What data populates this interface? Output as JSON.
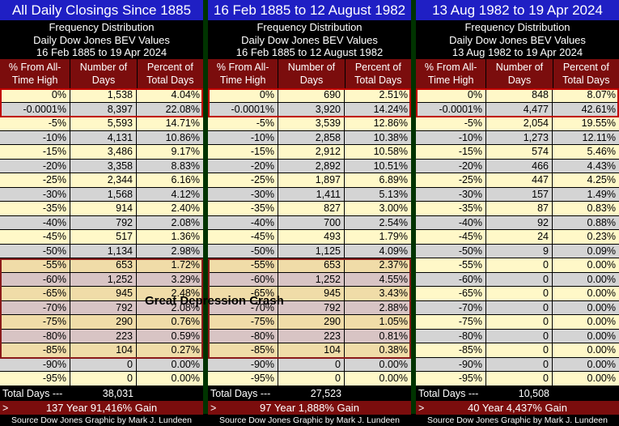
{
  "chart_data": [
    {
      "type": "table",
      "title": "All Daily Closings Since 1885",
      "subtitle": [
        "Frequency Distribution",
        "Daily Dow Jones BEV Values",
        "16 Feb 1885 to 19 Apr 2024"
      ],
      "columns": [
        "% From All-Time High",
        "Number of Days",
        "Percent of Total Days"
      ],
      "rows": [
        [
          "0%",
          "1,538",
          "4.04%"
        ],
        [
          "-0.0001%",
          "8,397",
          "22.08%"
        ],
        [
          "-5%",
          "5,593",
          "14.71%"
        ],
        [
          "-10%",
          "4,131",
          "10.86%"
        ],
        [
          "-15%",
          "3,486",
          "9.17%"
        ],
        [
          "-20%",
          "3,358",
          "8.83%"
        ],
        [
          "-25%",
          "2,344",
          "6.16%"
        ],
        [
          "-30%",
          "1,568",
          "4.12%"
        ],
        [
          "-35%",
          "914",
          "2.40%"
        ],
        [
          "-40%",
          "792",
          "2.08%"
        ],
        [
          "-45%",
          "517",
          "1.36%"
        ],
        [
          "-50%",
          "1,134",
          "2.98%"
        ],
        [
          "-55%",
          "653",
          "1.72%"
        ],
        [
          "-60%",
          "1,252",
          "3.29%"
        ],
        [
          "-65%",
          "945",
          "2.48%"
        ],
        [
          "-70%",
          "792",
          "2.08%"
        ],
        [
          "-75%",
          "290",
          "0.76%"
        ],
        [
          "-80%",
          "223",
          "0.59%"
        ],
        [
          "-85%",
          "104",
          "0.27%"
        ],
        [
          "-90%",
          "0",
          "0.00%"
        ],
        [
          "-95%",
          "0",
          "0.00%"
        ]
      ],
      "total_label": "Total Days --->",
      "total": "38,031",
      "gain": "137 Year 91,416% Gain",
      "source": "Source Dow Jones   Graphic by Mark J. Lundeen"
    },
    {
      "type": "table",
      "title": "16 Feb 1885 to 12 August 1982",
      "subtitle": [
        "Frequency Distribution",
        "Daily Dow Jones BEV Values",
        "16 Feb 1885 to 12 August 1982"
      ],
      "columns": [
        "% From All-Time High",
        "Number of Days",
        "Percent of Total Days"
      ],
      "rows": [
        [
          "0%",
          "690",
          "2.51%"
        ],
        [
          "-0.0001%",
          "3,920",
          "14.24%"
        ],
        [
          "-5%",
          "3,539",
          "12.86%"
        ],
        [
          "-10%",
          "2,858",
          "10.38%"
        ],
        [
          "-15%",
          "2,912",
          "10.58%"
        ],
        [
          "-20%",
          "2,892",
          "10.51%"
        ],
        [
          "-25%",
          "1,897",
          "6.89%"
        ],
        [
          "-30%",
          "1,411",
          "5.13%"
        ],
        [
          "-35%",
          "827",
          "3.00%"
        ],
        [
          "-40%",
          "700",
          "2.54%"
        ],
        [
          "-45%",
          "493",
          "1.79%"
        ],
        [
          "-50%",
          "1,125",
          "4.09%"
        ],
        [
          "-55%",
          "653",
          "2.37%"
        ],
        [
          "-60%",
          "1,252",
          "4.55%"
        ],
        [
          "-65%",
          "945",
          "3.43%"
        ],
        [
          "-70%",
          "792",
          "2.88%"
        ],
        [
          "-75%",
          "290",
          "1.05%"
        ],
        [
          "-80%",
          "223",
          "0.81%"
        ],
        [
          "-85%",
          "104",
          "0.38%"
        ],
        [
          "-90%",
          "0",
          "0.00%"
        ],
        [
          "-95%",
          "0",
          "0.00%"
        ]
      ],
      "total_label": "Total Days --->",
      "total": "27,523",
      "gain": "97 Year 1,888% Gain",
      "source": "Source Dow Jones   Graphic by Mark J. Lundeen"
    },
    {
      "type": "table",
      "title": "13 Aug 1982 to 19 Apr 2024",
      "subtitle": [
        "Frequency Distribution",
        "Daily Dow Jones BEV Values",
        "13 Aug 1982 to 19 Apr 2024"
      ],
      "columns": [
        "% From All-Time High",
        "Number of Days",
        "Percent of Total Days"
      ],
      "rows": [
        [
          "0%",
          "848",
          "8.07%"
        ],
        [
          "-0.0001%",
          "4,477",
          "42.61%"
        ],
        [
          "-5%",
          "2,054",
          "19.55%"
        ],
        [
          "-10%",
          "1,273",
          "12.11%"
        ],
        [
          "-15%",
          "574",
          "5.46%"
        ],
        [
          "-20%",
          "466",
          "4.43%"
        ],
        [
          "-25%",
          "447",
          "4.25%"
        ],
        [
          "-30%",
          "157",
          "1.49%"
        ],
        [
          "-35%",
          "87",
          "0.83%"
        ],
        [
          "-40%",
          "92",
          "0.88%"
        ],
        [
          "-45%",
          "24",
          "0.23%"
        ],
        [
          "-50%",
          "9",
          "0.09%"
        ],
        [
          "-55%",
          "0",
          "0.00%"
        ],
        [
          "-60%",
          "0",
          "0.00%"
        ],
        [
          "-65%",
          "0",
          "0.00%"
        ],
        [
          "-70%",
          "0",
          "0.00%"
        ],
        [
          "-75%",
          "0",
          "0.00%"
        ],
        [
          "-80%",
          "0",
          "0.00%"
        ],
        [
          "-85%",
          "0",
          "0.00%"
        ],
        [
          "-90%",
          "0",
          "0.00%"
        ],
        [
          "-95%",
          "0",
          "0.00%"
        ]
      ],
      "total_label": "Total Days --->",
      "total": "10,508",
      "gain": "40 Year 4,437% Gain",
      "source": "Source Dow Jones   Graphic by Mark J. Lundeen"
    }
  ],
  "annotation": "Great Depression Crash",
  "colors": {
    "title_bg": "#1f1fc4",
    "header_bg": "#7b0d0d",
    "row_light": "#fff8c8",
    "row_gray": "#d4d4d4",
    "depression_tan": "#f0dca8",
    "depression_mauve": "#d8c4c4",
    "highlight_box": "#c00000"
  }
}
